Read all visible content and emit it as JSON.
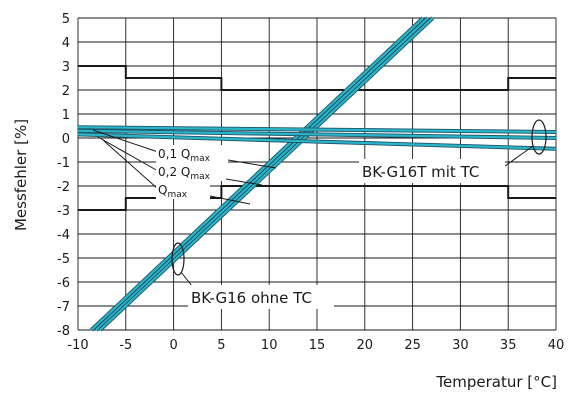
{
  "chart_data": {
    "type": "line",
    "xlabel": "Temperatur [°C]",
    "ylabel": "Messfehler [%]",
    "xlim": [
      -10,
      40
    ],
    "ylim": [
      -8,
      5
    ],
    "xticks": [
      -10,
      -5,
      0,
      5,
      10,
      15,
      20,
      25,
      30,
      35,
      40
    ],
    "yticks": [
      -8,
      -7,
      -6,
      -5,
      -4,
      -3,
      -2,
      -1,
      0,
      1,
      2,
      3,
      4,
      5
    ],
    "grid": true,
    "colors": {
      "series": "#2bb5c8",
      "series_edge": "#1e5568",
      "limits": "#1a1a1a",
      "grid": "#1a1a1a"
    },
    "limits": {
      "upper": [
        {
          "x": -10,
          "y": 3
        },
        {
          "x": -5,
          "y": 3
        },
        {
          "x": -5,
          "y": 2.5
        },
        {
          "x": 5,
          "y": 2.5
        },
        {
          "x": 5,
          "y": 2
        },
        {
          "x": 35,
          "y": 2
        },
        {
          "x": 35,
          "y": 2.5
        },
        {
          "x": 40,
          "y": 2.5
        }
      ],
      "lower": [
        {
          "x": -10,
          "y": -3
        },
        {
          "x": -5,
          "y": -3
        },
        {
          "x": -5,
          "y": -2.5
        },
        {
          "x": 5,
          "y": -2.5
        },
        {
          "x": 5,
          "y": -2
        },
        {
          "x": 35,
          "y": -2
        },
        {
          "x": 35,
          "y": -2.5
        },
        {
          "x": 40,
          "y": -2.5
        }
      ]
    },
    "groups": [
      {
        "label": "BK-G16 ohne TC",
        "series": [
          {
            "x": [
              -8.6,
              26.1
            ],
            "y": [
              -8,
              5
            ]
          },
          {
            "x": [
              -8.1,
              26.6
            ],
            "y": [
              -8,
              5
            ]
          },
          {
            "x": [
              -7.7,
              27.1
            ],
            "y": [
              -8,
              5
            ]
          }
        ]
      },
      {
        "label": "BK-G16T mit TC",
        "series": [
          {
            "x": [
              -10,
              40
            ],
            "y": [
              0.45,
              0.25
            ]
          },
          {
            "x": [
              -10,
              40
            ],
            "y": [
              0.3,
              0.0
            ]
          },
          {
            "x": [
              -10,
              40
            ],
            "y": [
              0.15,
              -0.45
            ]
          }
        ]
      }
    ],
    "flow_labels": [
      {
        "text": "0,1 Q",
        "sub": "max"
      },
      {
        "text": "0,2 Q",
        "sub": "max"
      },
      {
        "text": "Q",
        "sub": "max"
      }
    ]
  }
}
